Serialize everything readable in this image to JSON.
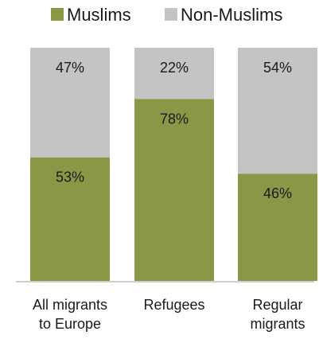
{
  "chart_data": {
    "type": "bar",
    "stacked": true,
    "percent_stacked": true,
    "categories": [
      [
        "All migrants",
        "to Europe"
      ],
      [
        "Refugees"
      ],
      [
        "Regular",
        "migrants"
      ]
    ],
    "series": [
      {
        "name": "Muslims",
        "values": [
          53,
          78,
          46
        ],
        "labels": [
          "53%",
          "78%",
          "46%"
        ],
        "color": "#8b9646"
      },
      {
        "name": "Non-Muslims",
        "values": [
          47,
          22,
          54
        ],
        "labels": [
          "47%",
          "22%",
          "54%"
        ],
        "color": "#c4c4c4"
      }
    ],
    "ylim": [
      0,
      100
    ],
    "grid": false,
    "legend_position": "top"
  }
}
